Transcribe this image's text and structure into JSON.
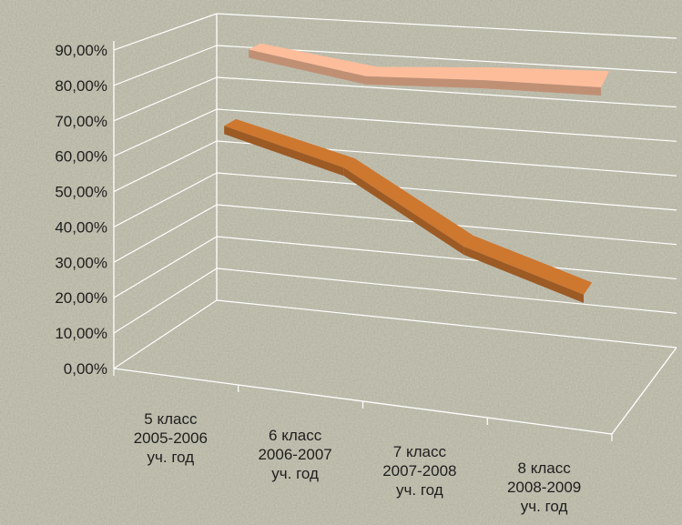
{
  "chart_data": {
    "type": "line",
    "title": "",
    "xlabel": "",
    "ylabel": "",
    "categories": [
      [
        "5 класс",
        "2005-2006",
        "уч. год"
      ],
      [
        "6 класс",
        "2006-2007",
        "уч. год"
      ],
      [
        "7 класс",
        "2007-2008",
        "уч. год"
      ],
      [
        "8 класс",
        "2008-2009",
        "уч. год"
      ]
    ],
    "series": [
      {
        "values": [
          0.65,
          0.58,
          0.39,
          0.29
        ],
        "color": "#b86a2a"
      },
      {
        "values": [
          0.84,
          0.8,
          0.83,
          0.85
        ],
        "color": "#e2a98a"
      }
    ],
    "ylim": [
      0,
      0.9
    ],
    "y_ticks": [
      "0,00%",
      "10,00%",
      "20,00%",
      "30,00%",
      "40,00%",
      "50,00%",
      "60,00%",
      "70,00%",
      "80,00%",
      "90,00%"
    ],
    "style": "3d-line",
    "grid": true,
    "legend": "none",
    "background": "#c9c7b6",
    "grid_color": "#ffffff"
  }
}
